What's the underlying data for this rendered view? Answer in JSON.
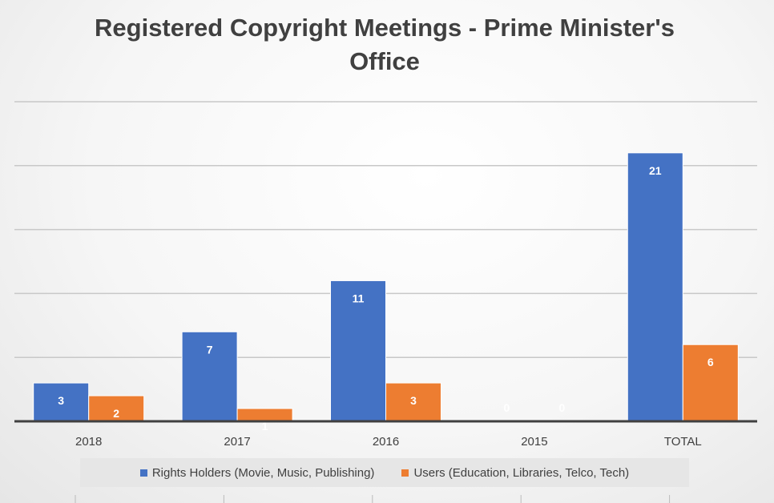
{
  "chart_data": {
    "type": "bar",
    "title": "Registered Copyright Meetings - Prime Minister's Office",
    "categories": [
      "2018",
      "2017",
      "2016",
      "2015",
      "TOTAL"
    ],
    "series": [
      {
        "name": "Rights Holders (Movie, Music, Publishing)",
        "values": [
          3,
          7,
          11,
          0,
          21
        ],
        "color": "#4472c4"
      },
      {
        "name": "Users (Education, Libraries, Telco, Tech)",
        "values": [
          2,
          1,
          3,
          0,
          6
        ],
        "color": "#ed7d31"
      }
    ],
    "ylim": [
      0,
      25
    ],
    "gridlines": true,
    "data_labels": true,
    "legend_position": "bottom"
  }
}
